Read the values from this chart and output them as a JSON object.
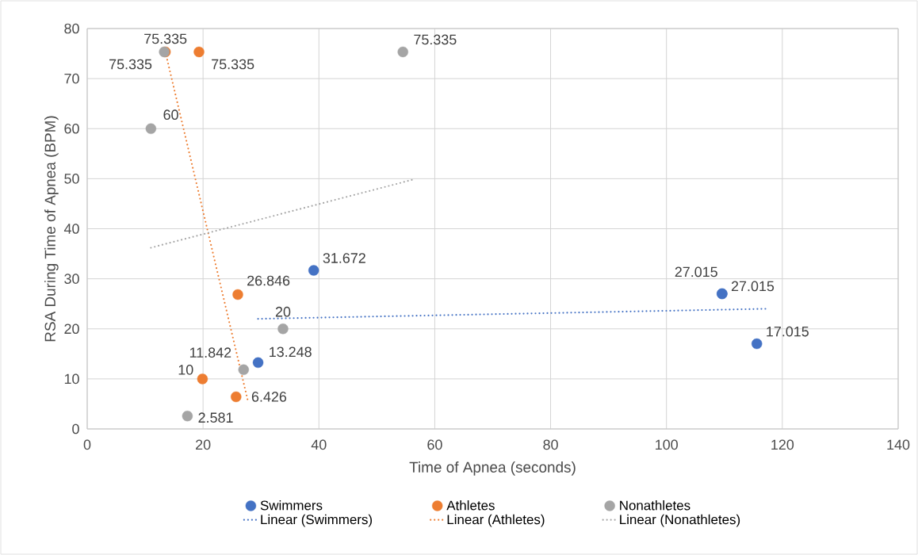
{
  "chart_data": {
    "type": "scatter",
    "xlabel": "Time of Apnea (seconds)",
    "ylabel": "RSA During Time of Apnea (BPM)",
    "xlim": [
      0,
      140
    ],
    "xticks": [
      0,
      20,
      40,
      60,
      80,
      100,
      120,
      140
    ],
    "ylim": [
      0,
      80
    ],
    "yticks": [
      0,
      10,
      20,
      30,
      40,
      50,
      60,
      70,
      80
    ],
    "grid": true,
    "legend": "bottom",
    "series": [
      {
        "name": "Swimmers",
        "color": "#4472c4",
        "marker": "circle",
        "x": [
          39.1,
          29.5,
          109.6,
          109.6,
          115.6
        ],
        "values": [
          31.672,
          13.248,
          27.015,
          27.015,
          17.015
        ],
        "value_labels": [
          "31.672",
          "13.248",
          "27.015",
          "27.015",
          "17.015"
        ]
      },
      {
        "name": "Athletes",
        "color": "#ed7d31",
        "marker": "circle",
        "x": [
          13.5,
          19.3,
          19.9,
          26.0,
          25.7
        ],
        "values": [
          75.335,
          75.335,
          10,
          26.846,
          6.426
        ],
        "value_labels": [
          "75.335",
          "75.335",
          "10",
          "26.846",
          "6.426"
        ]
      },
      {
        "name": "Nonathletes",
        "color": "#a5a5a5",
        "marker": "circle",
        "x": [
          11.0,
          13.3,
          54.5,
          33.8,
          27.0,
          17.3
        ],
        "values": [
          60,
          75.335,
          75.335,
          20,
          11.842,
          2.581
        ],
        "value_labels": [
          "60",
          "75.335",
          "75.335",
          "20",
          "11.842",
          "2.581"
        ]
      },
      {
        "name": "Linear (Swimmers)",
        "color": "#4472c4",
        "type": "line",
        "line_style": "dotted",
        "marker": "none",
        "x": [
          29.5,
          117.2
        ],
        "values": [
          22.0,
          24.0
        ]
      },
      {
        "name": "Linear (Athletes)",
        "color": "#ed7d31",
        "type": "line",
        "line_style": "dotted",
        "marker": "none",
        "x": [
          13.5,
          27.8
        ],
        "values": [
          75.3,
          5.3
        ]
      },
      {
        "name": "Linear (Nonathletes)",
        "color": "#a5a5a5",
        "type": "line",
        "line_style": "dotted",
        "marker": "none",
        "x": [
          11.0,
          56.2
        ],
        "values": [
          36.2,
          49.8
        ]
      }
    ]
  }
}
